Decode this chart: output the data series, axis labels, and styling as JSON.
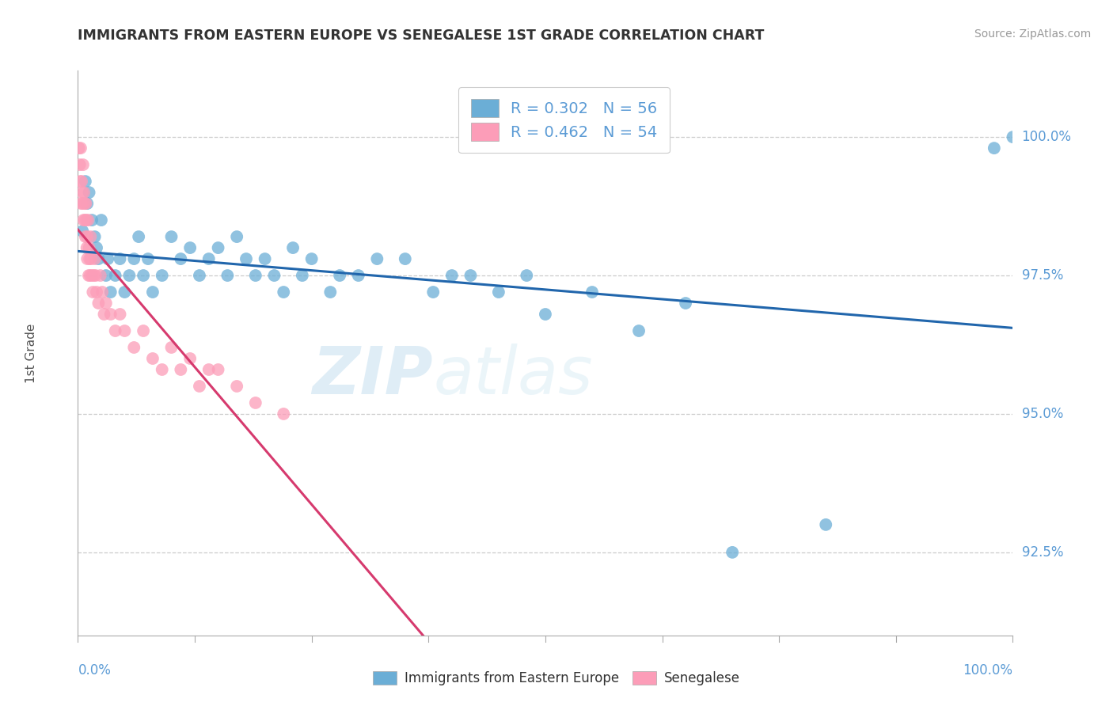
{
  "title": "IMMIGRANTS FROM EASTERN EUROPE VS SENEGALESE 1ST GRADE CORRELATION CHART",
  "source": "Source: ZipAtlas.com",
  "ylabel": "1st Grade",
  "legend_blue_r": "R = 0.302",
  "legend_blue_n": "N = 56",
  "legend_pink_r": "R = 0.462",
  "legend_pink_n": "N = 54",
  "blue_color": "#6baed6",
  "pink_color": "#fc9db8",
  "blue_line_color": "#2166ac",
  "pink_line_color": "#d63a6e",
  "watermark_zip": "ZIP",
  "watermark_atlas": "atlas",
  "xmin": 0.0,
  "xmax": 100.0,
  "ymin": 91.0,
  "ymax": 101.2,
  "ytick_vals": [
    92.5,
    95.0,
    97.5,
    100.0
  ],
  "ytick_labels": [
    "92.5%",
    "95.0%",
    "97.5%",
    "100.0%"
  ],
  "background_color": "#ffffff",
  "grid_color": "#cccccc",
  "title_color": "#333333",
  "tick_label_color": "#5b9bd5",
  "blue_dots_x": [
    0.5,
    0.8,
    1.0,
    1.2,
    1.5,
    1.8,
    2.0,
    2.2,
    2.5,
    3.0,
    3.2,
    3.5,
    4.0,
    4.5,
    5.0,
    5.5,
    6.0,
    6.5,
    7.0,
    7.5,
    8.0,
    9.0,
    10.0,
    11.0,
    12.0,
    13.0,
    14.0,
    15.0,
    16.0,
    17.0,
    18.0,
    19.0,
    20.0,
    21.0,
    22.0,
    23.0,
    24.0,
    25.0,
    27.0,
    28.0,
    30.0,
    32.0,
    35.0,
    38.0,
    40.0,
    42.0,
    45.0,
    48.0,
    50.0,
    55.0,
    60.0,
    65.0,
    70.0,
    80.0,
    98.0,
    100.0
  ],
  "blue_dots_y": [
    98.3,
    99.2,
    98.8,
    99.0,
    98.5,
    98.2,
    98.0,
    97.8,
    98.5,
    97.5,
    97.8,
    97.2,
    97.5,
    97.8,
    97.2,
    97.5,
    97.8,
    98.2,
    97.5,
    97.8,
    97.2,
    97.5,
    98.2,
    97.8,
    98.0,
    97.5,
    97.8,
    98.0,
    97.5,
    98.2,
    97.8,
    97.5,
    97.8,
    97.5,
    97.2,
    98.0,
    97.5,
    97.8,
    97.2,
    97.5,
    97.5,
    97.8,
    97.8,
    97.2,
    97.5,
    97.5,
    97.2,
    97.5,
    96.8,
    97.2,
    96.5,
    97.0,
    92.5,
    93.0,
    99.8,
    100.0
  ],
  "pink_dots_x": [
    0.1,
    0.2,
    0.25,
    0.3,
    0.35,
    0.4,
    0.45,
    0.5,
    0.55,
    0.6,
    0.65,
    0.7,
    0.75,
    0.8,
    0.85,
    0.9,
    0.95,
    1.0,
    1.0,
    1.1,
    1.15,
    1.2,
    1.25,
    1.3,
    1.35,
    1.4,
    1.5,
    1.6,
    1.7,
    1.8,
    1.9,
    2.0,
    2.2,
    2.4,
    2.6,
    2.8,
    3.0,
    3.5,
    4.0,
    4.5,
    5.0,
    6.0,
    7.0,
    8.0,
    9.0,
    10.0,
    11.0,
    12.0,
    13.0,
    14.0,
    15.0,
    17.0,
    19.0,
    22.0
  ],
  "pink_dots_y": [
    99.8,
    99.5,
    99.2,
    99.8,
    98.8,
    99.2,
    99.0,
    98.8,
    99.5,
    98.5,
    99.0,
    98.8,
    98.5,
    98.2,
    98.8,
    98.5,
    98.0,
    98.2,
    97.8,
    98.5,
    97.5,
    98.0,
    97.8,
    97.5,
    98.2,
    97.8,
    97.5,
    97.2,
    97.5,
    97.8,
    97.5,
    97.2,
    97.0,
    97.5,
    97.2,
    96.8,
    97.0,
    96.8,
    96.5,
    96.8,
    96.5,
    96.2,
    96.5,
    96.0,
    95.8,
    96.2,
    95.8,
    96.0,
    95.5,
    95.8,
    95.8,
    95.5,
    95.2,
    95.0
  ]
}
